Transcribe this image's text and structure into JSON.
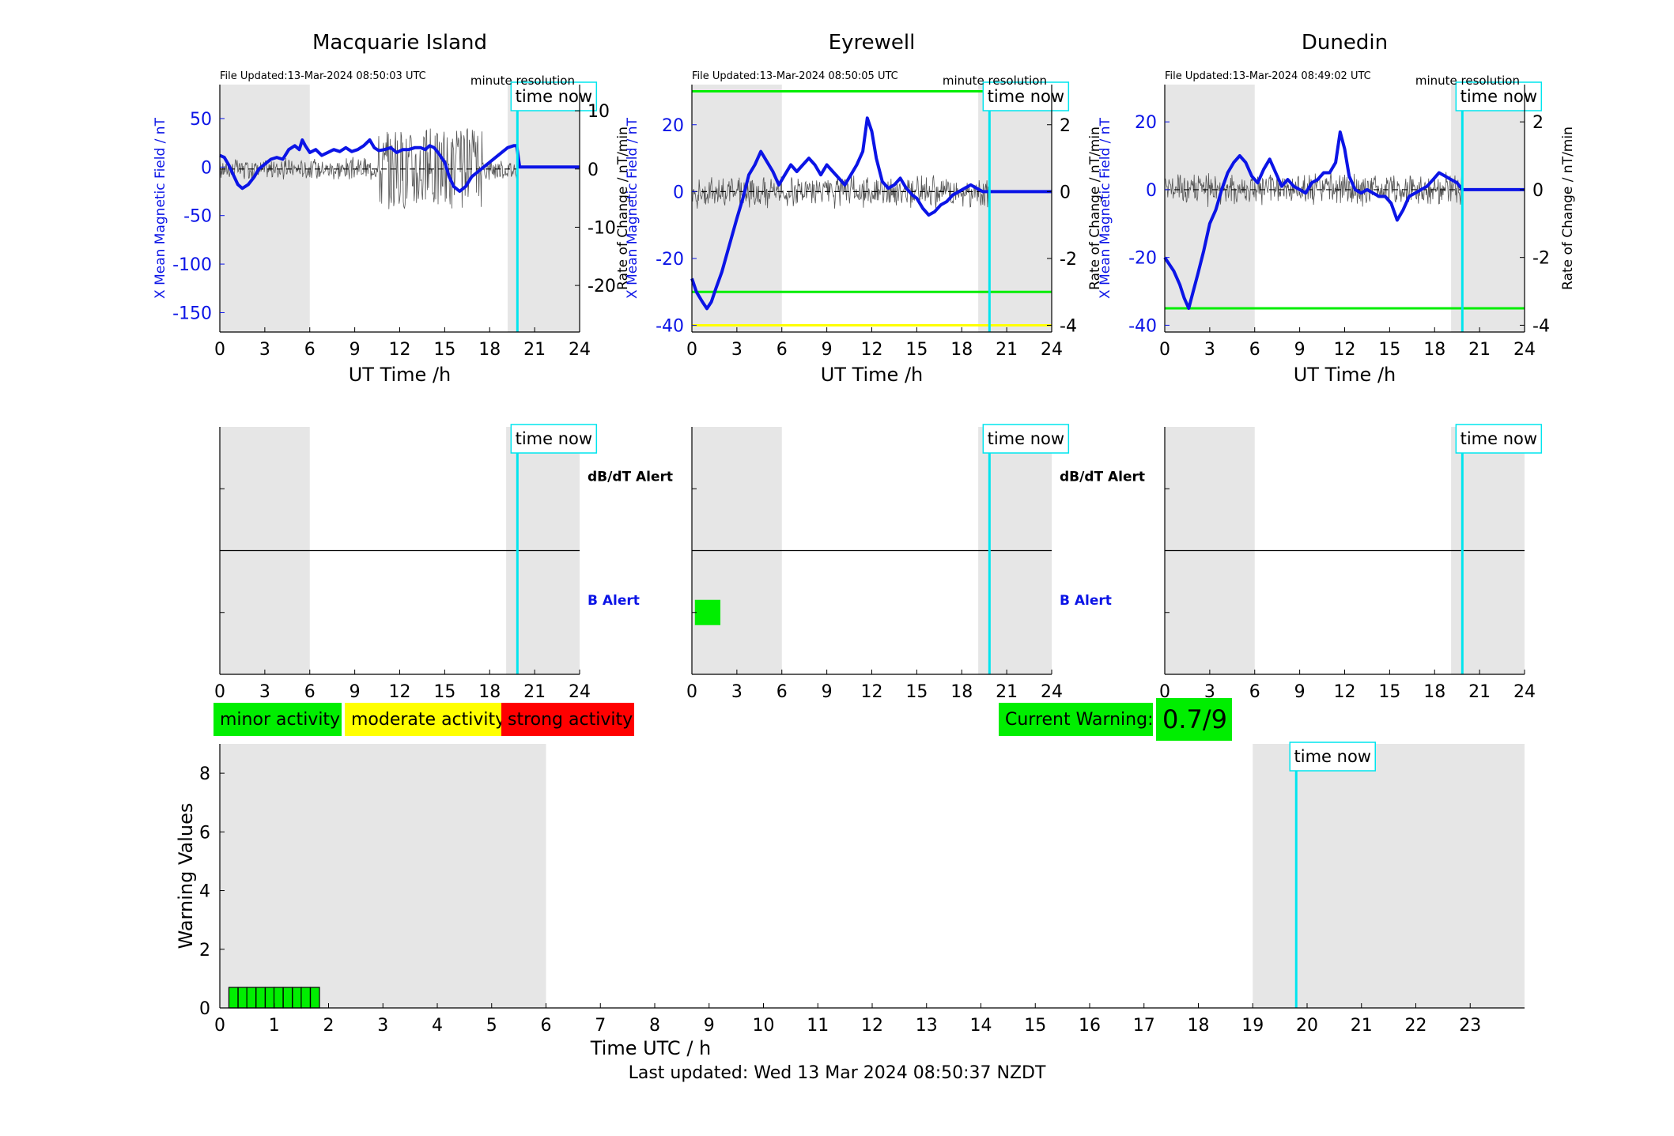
{
  "colors": {
    "b_line": "#0b14e6",
    "rate_line": "#555555",
    "time_now": "#00e5ee",
    "shade": "#e6e6e6",
    "green": "#00ee00",
    "yellow": "#ffff00",
    "red": "#ff0000"
  },
  "labels": {
    "time_now": "time now",
    "minute_resolution": "minute resolution",
    "ut_time": "UT Time /h",
    "b_ylabel": "X Mean Magnetic Field / nT",
    "rate_ylabel": "Rate of Change / nT/min",
    "dbdt_alert": "dB/dT Alert",
    "b_alert": "B Alert"
  },
  "legend": {
    "minor": "minor activity",
    "moderate": "moderate activity",
    "strong": "strong activity"
  },
  "current_warning": {
    "label": "Current Warning:",
    "value": "0.7/9"
  },
  "footer": "Last updated: Wed 13 Mar 2024 08:50:37 NZDT",
  "chart_data": [
    {
      "type": "line",
      "title": "Macquarie Island",
      "file_updated": "File Updated:13-Mar-2024 08:50:03 UTC",
      "xlabel": "UT Time /h",
      "ylabel": "X Mean Magnetic Field / nT",
      "ylabel_right": "Rate of Change / nT/min",
      "xlim": [
        0,
        24
      ],
      "xticks": [
        0,
        3,
        6,
        9,
        12,
        15,
        18,
        21,
        24
      ],
      "ylim": [
        -170,
        85
      ],
      "yticks": [
        -150,
        -100,
        -50,
        0,
        50
      ],
      "ylim_right": [
        -28,
        14.5
      ],
      "yticks_right": [
        -20,
        -10,
        0,
        10
      ],
      "shaded_hours": [
        [
          0,
          6
        ],
        [
          19.2,
          24
        ]
      ],
      "time_now": 19.85,
      "thresholds": [],
      "series": [
        {
          "axis": "left",
          "points": [
            [
              0,
              12
            ],
            [
              0.3,
              10
            ],
            [
              0.6,
              2
            ],
            [
              0.9,
              -8
            ],
            [
              1.2,
              -18
            ],
            [
              1.5,
              -22
            ],
            [
              1.9,
              -18
            ],
            [
              2.3,
              -10
            ],
            [
              2.6,
              -2
            ],
            [
              3,
              3
            ],
            [
              3.4,
              8
            ],
            [
              3.8,
              10
            ],
            [
              4.2,
              8
            ],
            [
              4.6,
              18
            ],
            [
              5.0,
              22
            ],
            [
              5.3,
              18
            ],
            [
              5.5,
              28
            ],
            [
              5.7,
              22
            ],
            [
              6,
              15
            ],
            [
              6.4,
              18
            ],
            [
              6.8,
              12
            ],
            [
              7.2,
              15
            ],
            [
              7.6,
              18
            ],
            [
              8,
              16
            ],
            [
              8.4,
              20
            ],
            [
              8.8,
              16
            ],
            [
              9.2,
              18
            ],
            [
              9.6,
              22
            ],
            [
              10.0,
              28
            ],
            [
              10.3,
              20
            ],
            [
              10.6,
              17
            ],
            [
              11.0,
              18
            ],
            [
              11.4,
              20
            ],
            [
              11.8,
              15
            ],
            [
              12.2,
              18
            ],
            [
              12.6,
              18
            ],
            [
              13.0,
              20
            ],
            [
              13.4,
              20
            ],
            [
              13.7,
              18
            ],
            [
              14.0,
              22
            ],
            [
              14.3,
              20
            ],
            [
              14.6,
              14
            ],
            [
              15.0,
              5
            ],
            [
              15.3,
              -10
            ],
            [
              15.6,
              -20
            ],
            [
              16.0,
              -25
            ],
            [
              16.4,
              -20
            ],
            [
              16.8,
              -10
            ],
            [
              17.2,
              -5
            ],
            [
              17.6,
              0
            ],
            [
              18.0,
              5
            ],
            [
              18.4,
              10
            ],
            [
              18.8,
              15
            ],
            [
              19.2,
              20
            ],
            [
              19.6,
              22
            ],
            [
              19.8,
              22
            ],
            [
              20,
              0
            ],
            [
              24,
              0
            ]
          ]
        },
        {
          "axis": "right",
          "noise_amplitude": 2
        }
      ]
    },
    {
      "type": "line",
      "title": "Eyrewell",
      "file_updated": "File Updated:13-Mar-2024 08:50:05 UTC",
      "xlabel": "UT Time /h",
      "ylabel": "X Mean Magnetic Field / nT",
      "ylabel_right": "Rate of Change / nT/min",
      "xlim": [
        0,
        24
      ],
      "xticks": [
        0,
        3,
        6,
        9,
        12,
        15,
        18,
        21,
        24
      ],
      "ylim": [
        -42,
        32
      ],
      "yticks": [
        -40,
        -20,
        0,
        20
      ],
      "ylim_right": [
        -4.2,
        3.2
      ],
      "yticks_right": [
        -4,
        -2,
        0,
        2
      ],
      "shaded_hours": [
        [
          0,
          6
        ],
        [
          19.1,
          24
        ]
      ],
      "time_now": 19.85,
      "thresholds": [
        {
          "value": 30,
          "color": "#00ee00"
        },
        {
          "value": -30,
          "color": "#00ee00"
        },
        {
          "value": -40,
          "color": "#ffff00"
        }
      ],
      "series": [
        {
          "axis": "left",
          "points": [
            [
              0,
              -26
            ],
            [
              0.3,
              -30
            ],
            [
              0.7,
              -33
            ],
            [
              1.0,
              -35
            ],
            [
              1.3,
              -33
            ],
            [
              1.6,
              -29
            ],
            [
              2.0,
              -24
            ],
            [
              2.5,
              -16
            ],
            [
              3.0,
              -8
            ],
            [
              3.4,
              -2
            ],
            [
              3.8,
              5
            ],
            [
              4.2,
              8
            ],
            [
              4.6,
              12
            ],
            [
              5.0,
              9
            ],
            [
              5.4,
              6
            ],
            [
              5.8,
              2
            ],
            [
              6.2,
              5
            ],
            [
              6.6,
              8
            ],
            [
              7.0,
              6
            ],
            [
              7.4,
              8
            ],
            [
              7.8,
              10
            ],
            [
              8.2,
              8
            ],
            [
              8.6,
              5
            ],
            [
              9.0,
              8
            ],
            [
              9.4,
              6
            ],
            [
              9.8,
              4
            ],
            [
              10.2,
              2
            ],
            [
              10.6,
              5
            ],
            [
              11.0,
              8
            ],
            [
              11.4,
              12
            ],
            [
              11.7,
              22
            ],
            [
              12.0,
              18
            ],
            [
              12.3,
              10
            ],
            [
              12.7,
              3
            ],
            [
              13.1,
              1
            ],
            [
              13.5,
              2
            ],
            [
              13.9,
              4
            ],
            [
              14.3,
              1
            ],
            [
              14.7,
              -1
            ],
            [
              15.0,
              -2
            ],
            [
              15.4,
              -5
            ],
            [
              15.8,
              -7
            ],
            [
              16.2,
              -6
            ],
            [
              16.6,
              -4
            ],
            [
              17.0,
              -3
            ],
            [
              17.4,
              -1
            ],
            [
              17.8,
              0
            ],
            [
              18.2,
              1
            ],
            [
              18.6,
              2
            ],
            [
              19.0,
              1
            ],
            [
              19.4,
              0
            ],
            [
              19.85,
              0
            ],
            [
              24,
              0
            ]
          ]
        },
        {
          "axis": "right",
          "noise_amplitude": 0.5
        }
      ]
    },
    {
      "type": "line",
      "title": "Dunedin",
      "file_updated": "File Updated:13-Mar-2024 08:49:02 UTC",
      "xlabel": "UT Time /h",
      "ylabel": "X Mean Magnetic Field / nT",
      "ylabel_right": "Rate of Change / nT/min",
      "xlim": [
        0,
        24
      ],
      "xticks": [
        0,
        3,
        6,
        9,
        12,
        15,
        18,
        21,
        24
      ],
      "ylim": [
        -42,
        31
      ],
      "yticks": [
        -40,
        -20,
        0,
        20
      ],
      "ylim_right": [
        -4.2,
        3.1
      ],
      "yticks_right": [
        -4,
        -2,
        0,
        2
      ],
      "shaded_hours": [
        [
          0,
          6
        ],
        [
          19.1,
          24
        ]
      ],
      "time_now": 19.85,
      "thresholds": [
        {
          "value": -35,
          "color": "#00ee00"
        }
      ],
      "series": [
        {
          "axis": "left",
          "points": [
            [
              0,
              -20
            ],
            [
              0.3,
              -22
            ],
            [
              0.6,
              -24
            ],
            [
              1.0,
              -28
            ],
            [
              1.3,
              -32
            ],
            [
              1.6,
              -35
            ],
            [
              1.9,
              -30
            ],
            [
              2.2,
              -25
            ],
            [
              2.6,
              -18
            ],
            [
              3.0,
              -10
            ],
            [
              3.4,
              -6
            ],
            [
              3.8,
              0
            ],
            [
              4.2,
              5
            ],
            [
              4.6,
              8
            ],
            [
              5.0,
              10
            ],
            [
              5.4,
              8
            ],
            [
              5.8,
              4
            ],
            [
              6.2,
              2
            ],
            [
              6.6,
              6
            ],
            [
              7.0,
              9
            ],
            [
              7.4,
              5
            ],
            [
              7.8,
              1
            ],
            [
              8.2,
              3
            ],
            [
              8.6,
              1
            ],
            [
              9.0,
              0
            ],
            [
              9.4,
              -1
            ],
            [
              9.8,
              2
            ],
            [
              10.2,
              3
            ],
            [
              10.6,
              5
            ],
            [
              11.0,
              5
            ],
            [
              11.4,
              8
            ],
            [
              11.7,
              17
            ],
            [
              12.0,
              12
            ],
            [
              12.3,
              4
            ],
            [
              12.7,
              0
            ],
            [
              13.1,
              -1
            ],
            [
              13.5,
              0
            ],
            [
              13.9,
              -1
            ],
            [
              14.3,
              -2
            ],
            [
              14.7,
              -2
            ],
            [
              15.1,
              -4
            ],
            [
              15.5,
              -9
            ],
            [
              15.9,
              -6
            ],
            [
              16.3,
              -2
            ],
            [
              16.7,
              -1
            ],
            [
              17.1,
              0
            ],
            [
              17.5,
              1
            ],
            [
              17.9,
              3
            ],
            [
              18.3,
              5
            ],
            [
              18.7,
              4
            ],
            [
              19.1,
              3
            ],
            [
              19.5,
              2
            ],
            [
              19.85,
              0
            ],
            [
              24,
              0
            ]
          ]
        },
        {
          "axis": "right",
          "noise_amplitude": 0.5
        }
      ]
    },
    {
      "type": "bar",
      "title": "",
      "xlim": [
        0,
        24
      ],
      "xticks": [
        0,
        3,
        6,
        9,
        12,
        15,
        18,
        21,
        24
      ],
      "shaded_hours": [
        [
          0,
          6
        ],
        [
          19.1,
          24
        ]
      ],
      "time_now": 19.85,
      "dbdt_alert": [],
      "b_alert": []
    },
    {
      "type": "bar",
      "title": "",
      "xlim": [
        0,
        24
      ],
      "xticks": [
        0,
        3,
        6,
        9,
        12,
        15,
        18,
        21,
        24
      ],
      "shaded_hours": [
        [
          0,
          6
        ],
        [
          19.1,
          24
        ]
      ],
      "time_now": 19.85,
      "dbdt_alert": [],
      "b_alert": [
        {
          "start": 0.2,
          "end": 1.9,
          "color": "#00ee00"
        }
      ]
    },
    {
      "type": "bar",
      "title": "",
      "xlim": [
        0,
        24
      ],
      "xticks": [
        0,
        3,
        6,
        9,
        12,
        15,
        18,
        21,
        24
      ],
      "shaded_hours": [
        [
          0,
          6
        ],
        [
          19.1,
          24
        ]
      ],
      "time_now": 19.85,
      "dbdt_alert": [],
      "b_alert": []
    },
    {
      "type": "bar",
      "title": "",
      "xlabel": "Time UTC / h",
      "ylabel": "Warning Values",
      "xlim": [
        0,
        24
      ],
      "xticks": [
        0,
        1,
        2,
        3,
        4,
        5,
        6,
        7,
        8,
        9,
        10,
        11,
        12,
        13,
        14,
        15,
        16,
        17,
        18,
        19,
        20,
        21,
        22,
        23
      ],
      "ylim": [
        0,
        9
      ],
      "yticks": [
        0,
        2,
        4,
        6,
        8
      ],
      "shaded_hours": [
        [
          0,
          6
        ],
        [
          19,
          24
        ]
      ],
      "time_now": 19.8,
      "bars": [
        {
          "x": 0.25,
          "value": 0.7
        },
        {
          "x": 0.42,
          "value": 0.7
        },
        {
          "x": 0.58,
          "value": 0.7
        },
        {
          "x": 0.75,
          "value": 0.7
        },
        {
          "x": 0.92,
          "value": 0.7
        },
        {
          "x": 1.08,
          "value": 0.7
        },
        {
          "x": 1.25,
          "value": 0.7
        },
        {
          "x": 1.42,
          "value": 0.7
        },
        {
          "x": 1.58,
          "value": 0.7
        },
        {
          "x": 1.75,
          "value": 0.7
        }
      ]
    }
  ]
}
